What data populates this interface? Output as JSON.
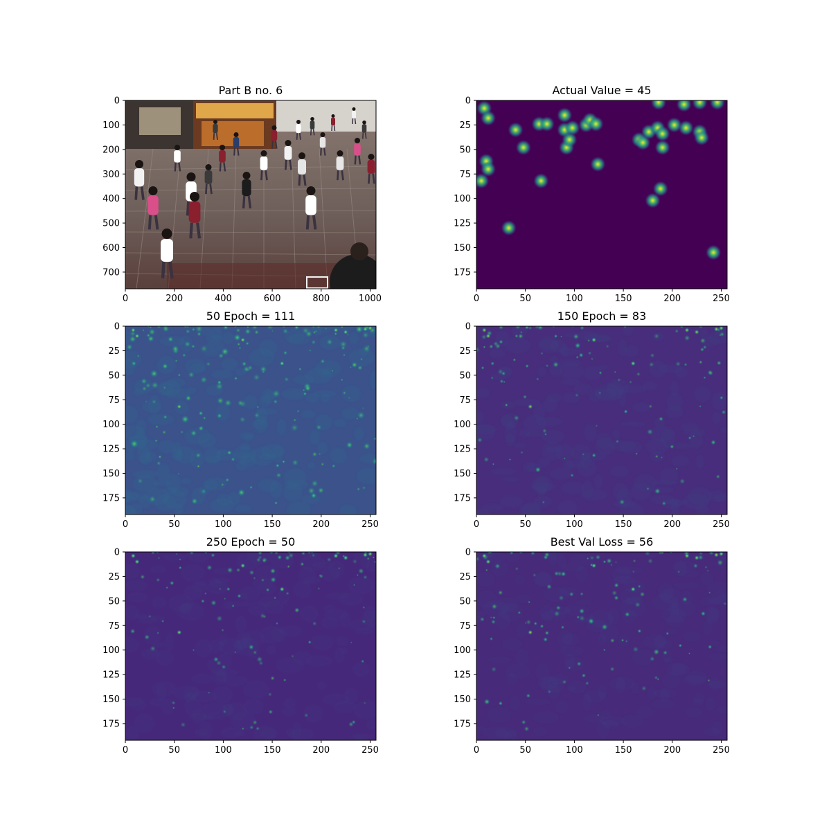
{
  "chart_data": [
    {
      "type": "image",
      "title": "Part B no. 6",
      "content": "crowd-photo",
      "xlim": [
        0,
        1024
      ],
      "ylim": [
        768,
        0
      ],
      "xticks": [
        0,
        200,
        400,
        600,
        800,
        1000
      ],
      "yticks": [
        0,
        100,
        200,
        300,
        400,
        500,
        600,
        700
      ]
    },
    {
      "type": "heatmap",
      "title": "Actual Value = 45",
      "colormap": "viridis",
      "background": "#440154",
      "xlim": [
        0,
        256
      ],
      "ylim": [
        192,
        0
      ],
      "xticks": [
        0,
        50,
        100,
        150,
        200,
        250
      ],
      "yticks": [
        0,
        25,
        50,
        75,
        100,
        125,
        150,
        175
      ],
      "points": [
        [
          8,
          8
        ],
        [
          12,
          18
        ],
        [
          10,
          62
        ],
        [
          12,
          70
        ],
        [
          5,
          82
        ],
        [
          40,
          30
        ],
        [
          48,
          48
        ],
        [
          64,
          24
        ],
        [
          66,
          82
        ],
        [
          72,
          24
        ],
        [
          90,
          15
        ],
        [
          90,
          30
        ],
        [
          92,
          48
        ],
        [
          95,
          40
        ],
        [
          98,
          28
        ],
        [
          112,
          25
        ],
        [
          116,
          20
        ],
        [
          122,
          24
        ],
        [
          124,
          65
        ],
        [
          166,
          40
        ],
        [
          170,
          43
        ],
        [
          176,
          32
        ],
        [
          180,
          102
        ],
        [
          185,
          28
        ],
        [
          188,
          90
        ],
        [
          190,
          48
        ],
        [
          190,
          34
        ],
        [
          202,
          25
        ],
        [
          214,
          28
        ],
        [
          186,
          2
        ],
        [
          212,
          4
        ],
        [
          228,
          2
        ],
        [
          246,
          2
        ],
        [
          228,
          32
        ],
        [
          230,
          38
        ],
        [
          33,
          130
        ],
        [
          242,
          155
        ]
      ]
    },
    {
      "type": "heatmap",
      "title": "50 Epoch = 111",
      "colormap": "viridis",
      "background": "#3b528b",
      "xlim": [
        0,
        256
      ],
      "ylim": [
        192,
        0
      ],
      "xticks": [
        0,
        50,
        100,
        150,
        200,
        250
      ],
      "yticks": [
        0,
        25,
        50,
        75,
        100,
        125,
        150,
        175
      ]
    },
    {
      "type": "heatmap",
      "title": "150 Epoch = 83",
      "colormap": "viridis",
      "background": "#472d7b",
      "xlim": [
        0,
        256
      ],
      "ylim": [
        192,
        0
      ],
      "xticks": [
        0,
        50,
        100,
        150,
        200,
        250
      ],
      "yticks": [
        0,
        25,
        50,
        75,
        100,
        125,
        150,
        175
      ]
    },
    {
      "type": "heatmap",
      "title": "250 Epoch = 50",
      "colormap": "viridis",
      "background": "#46287a",
      "xlim": [
        0,
        256
      ],
      "ylim": [
        192,
        0
      ],
      "xticks": [
        0,
        50,
        100,
        150,
        200,
        250
      ],
      "yticks": [
        0,
        25,
        50,
        75,
        100,
        125,
        150,
        175
      ]
    },
    {
      "type": "heatmap",
      "title": "Best Val Loss = 56",
      "colormap": "viridis",
      "background": "#472a7a",
      "xlim": [
        0,
        256
      ],
      "ylim": [
        192,
        0
      ],
      "xticks": [
        0,
        50,
        100,
        150,
        200,
        250
      ],
      "yticks": [
        0,
        25,
        50,
        75,
        100,
        125,
        150,
        175
      ]
    }
  ]
}
